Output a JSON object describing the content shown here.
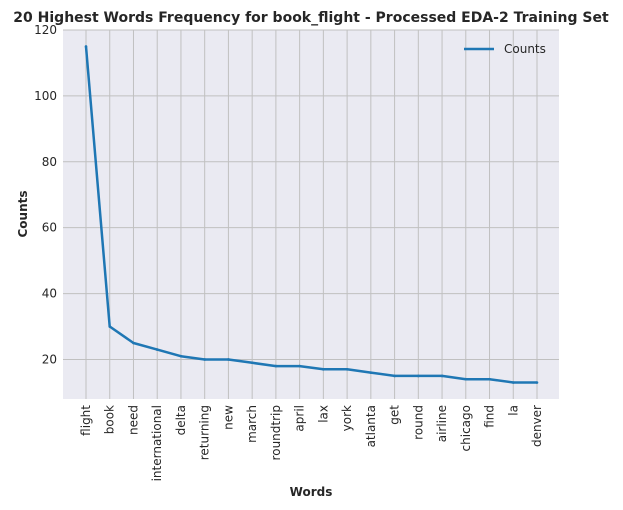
{
  "chart_data": {
    "type": "line",
    "title": "20 Highest Words Frequency for book_flight - Processed EDA-2 Training Set",
    "xlabel": "Words",
    "ylabel": "Counts",
    "categories": [
      "flight",
      "book",
      "need",
      "international",
      "delta",
      "returning",
      "new",
      "march",
      "roundtrip",
      "april",
      "lax",
      "york",
      "atlanta",
      "get",
      "round",
      "airline",
      "chicago",
      "find",
      "la",
      "denver"
    ],
    "series": [
      {
        "name": "Counts",
        "values": [
          115,
          30,
          25,
          23,
          21,
          20,
          20,
          19,
          18,
          18,
          17,
          17,
          16,
          15,
          15,
          15,
          14,
          14,
          13,
          13
        ]
      }
    ],
    "ylim": [
      8,
      120
    ],
    "yticks": [
      20,
      40,
      60,
      80,
      100,
      120
    ],
    "grid": true,
    "legend_position": "top-right",
    "colors": {
      "line": "#1f77b4",
      "plot_bg": "#eaeaf2",
      "grid": "#c0c0c0"
    }
  }
}
